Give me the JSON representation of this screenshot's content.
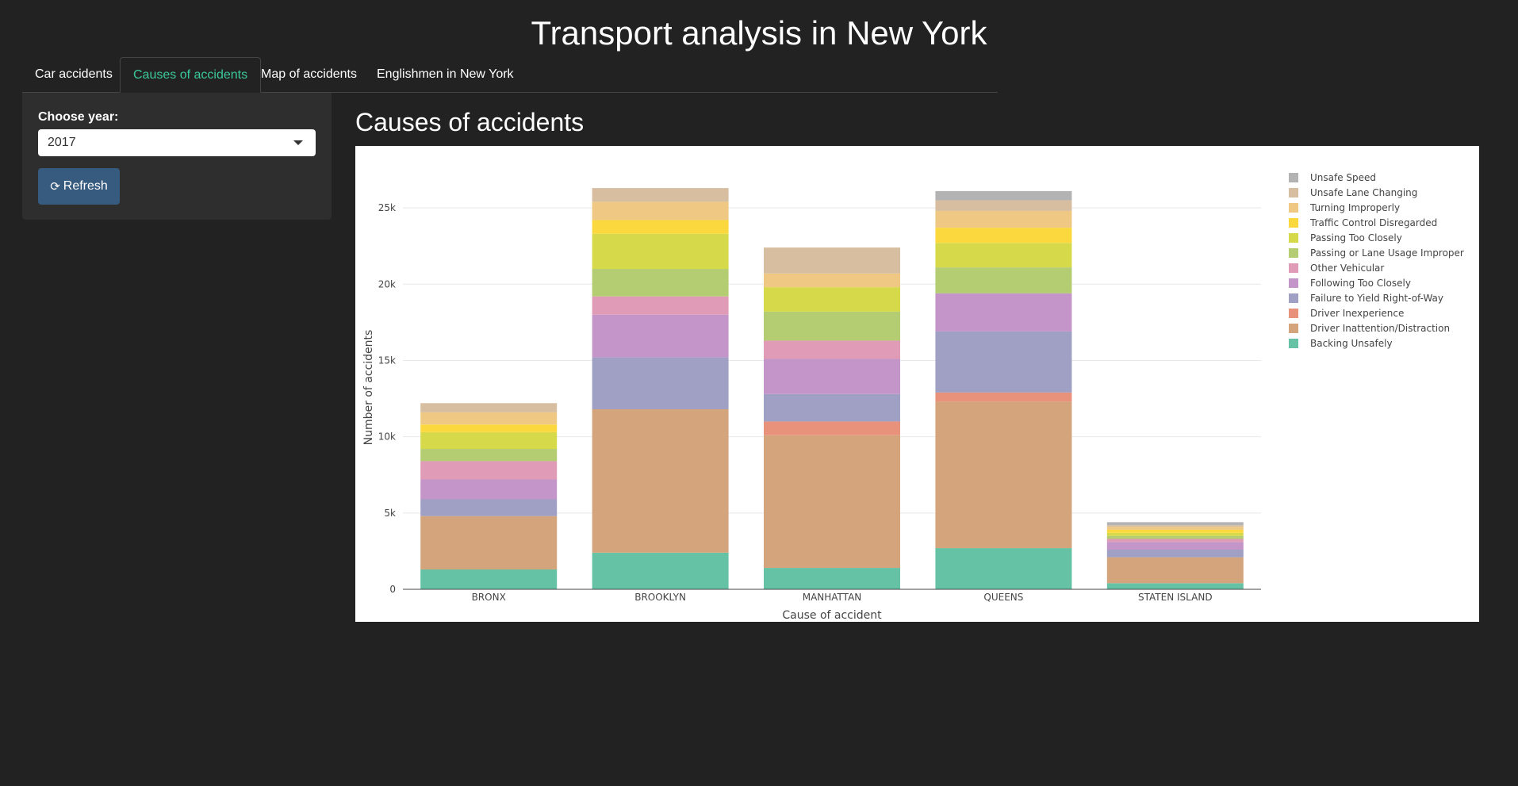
{
  "app": {
    "title": "Transport analysis in New York"
  },
  "tabs": [
    {
      "label": "Car accidents",
      "active": false
    },
    {
      "label": "Causes of accidents",
      "active": true
    },
    {
      "label": "Map of accidents",
      "active": false
    },
    {
      "label": "Englishmen in New York",
      "active": false
    }
  ],
  "sidebar": {
    "year_label": "Choose year:",
    "year_value": "2017",
    "refresh_label": "Refresh",
    "refresh_icon": "refresh-icon"
  },
  "main": {
    "section_title": "Causes of accidents"
  },
  "chart_data": {
    "type": "bar",
    "stacked": true,
    "title": "",
    "xlabel": "Cause of accident",
    "ylabel": "Number of accidents",
    "ylim": [
      0,
      27500
    ],
    "yticks": [
      0,
      5000,
      10000,
      15000,
      20000,
      25000
    ],
    "ytick_labels": [
      "0",
      "5k",
      "10k",
      "15k",
      "20k",
      "25k"
    ],
    "grid": true,
    "legend_position": "right",
    "categories": [
      "BRONX",
      "BROOKLYN",
      "MANHATTAN",
      "QUEENS",
      "STATEN ISLAND"
    ],
    "series": [
      {
        "name": "Backing Unsafely",
        "color": "#66c2a5",
        "values": [
          1300,
          2400,
          1400,
          2700,
          400
        ]
      },
      {
        "name": "Driver Inattention/Distraction",
        "color": "#d4a57c",
        "values": [
          3500,
          9400,
          8700,
          9600,
          1700
        ]
      },
      {
        "name": "Driver Inexperience",
        "color": "#e8927c",
        "values": [
          0,
          0,
          900,
          600,
          0
        ]
      },
      {
        "name": "Failure to Yield Right-of-Way",
        "color": "#9fa0c4",
        "values": [
          1100,
          3400,
          1800,
          4000,
          500
        ]
      },
      {
        "name": "Following Too Closely",
        "color": "#c495c8",
        "values": [
          1300,
          2800,
          2300,
          2500,
          500
        ]
      },
      {
        "name": "Other Vehicular",
        "color": "#e09bb6",
        "values": [
          1200,
          1200,
          1200,
          0,
          200
        ]
      },
      {
        "name": "Passing or Lane Usage Improper",
        "color": "#b5cd72",
        "values": [
          800,
          1800,
          1900,
          1700,
          200
        ]
      },
      {
        "name": "Passing Too Closely",
        "color": "#d5d94a",
        "values": [
          1100,
          2300,
          1600,
          1600,
          200
        ]
      },
      {
        "name": "Traffic Control Disregarded",
        "color": "#fbd93e",
        "values": [
          500,
          900,
          0,
          1000,
          200
        ]
      },
      {
        "name": "Turning Improperly",
        "color": "#efc983",
        "values": [
          800,
          1200,
          900,
          1100,
          200
        ]
      },
      {
        "name": "Unsafe Lane Changing",
        "color": "#d7bea0",
        "values": [
          600,
          900,
          1700,
          700,
          100
        ]
      },
      {
        "name": "Unsafe Speed",
        "color": "#b3b3b3",
        "values": [
          0,
          0,
          0,
          600,
          200
        ]
      }
    ]
  }
}
